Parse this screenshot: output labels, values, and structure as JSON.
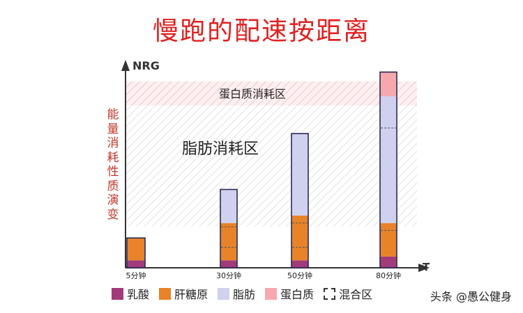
{
  "title": "慢跑的配速按距离",
  "watermark": "头条 @愚公健身",
  "chart_data": {
    "type": "bar",
    "stacked": true,
    "y_axis_title": "NRG",
    "x_axis_title": "T",
    "ylabel": "能量消耗性质演变",
    "categories": [
      "5分钟",
      "30分钟",
      "50分钟",
      "80分钟"
    ],
    "ylim": [
      0,
      100
    ],
    "series": [
      {
        "name": "乳酸",
        "color": "#a23b79",
        "values": [
          4,
          4,
          4,
          6
        ]
      },
      {
        "name": "肝糖原",
        "color": "#e8832a",
        "values": [
          12,
          20,
          24,
          18
        ]
      },
      {
        "name": "脂肪",
        "color": "#cfd1ee",
        "values": [
          0,
          18,
          44,
          68
        ]
      },
      {
        "name": "蛋白质",
        "color": "#f6a8ae",
        "values": [
          0,
          0,
          0,
          13
        ]
      }
    ],
    "mixed_zone_label": "混合区",
    "mixed_zone_lines": [
      [
        0
      ],
      [
        11,
        22
      ],
      [
        11,
        24
      ],
      [
        20,
        75
      ]
    ],
    "zones": [
      {
        "label": "蛋白质消耗区",
        "from": 87,
        "to": 100,
        "fill": "#f7c6cb"
      },
      {
        "label": "脂肪消耗区",
        "from": 22,
        "to": 87,
        "fill": "#e4e4e4"
      }
    ]
  }
}
